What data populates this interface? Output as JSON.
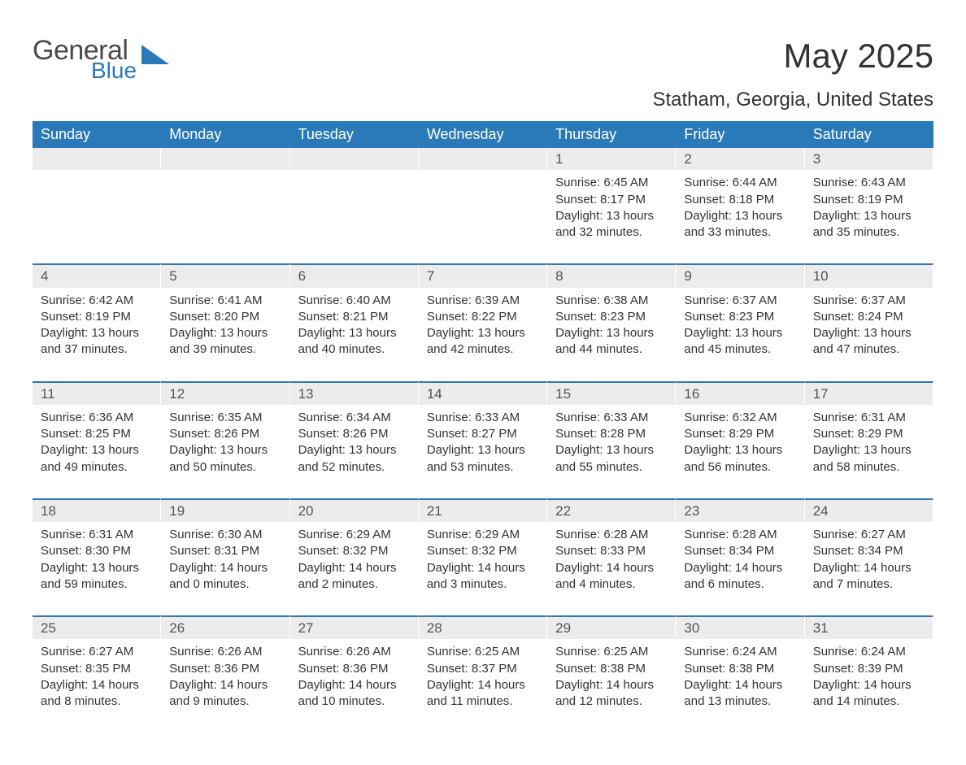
{
  "logo": {
    "text1": "General",
    "text2": "Blue",
    "accent_color": "#2a7ab9",
    "text_color": "#4a4a4a"
  },
  "title": "May 2025",
  "location": "Statham, Georgia, United States",
  "colors": {
    "header_bg": "#2a7ab9",
    "header_text": "#ffffff",
    "daynum_bg": "#ececec",
    "daynum_text": "#555555",
    "body_text": "#333333",
    "page_bg": "#ffffff",
    "row_rule": "#2a7ab9"
  },
  "fonts": {
    "title_size": 42,
    "location_size": 24,
    "header_size": 18,
    "daynum_size": 17,
    "body_size": 15
  },
  "day_headers": [
    "Sunday",
    "Monday",
    "Tuesday",
    "Wednesday",
    "Thursday",
    "Friday",
    "Saturday"
  ],
  "weeks": [
    [
      {
        "day": "",
        "sunrise": "",
        "sunset": "",
        "daylight": ""
      },
      {
        "day": "",
        "sunrise": "",
        "sunset": "",
        "daylight": ""
      },
      {
        "day": "",
        "sunrise": "",
        "sunset": "",
        "daylight": ""
      },
      {
        "day": "",
        "sunrise": "",
        "sunset": "",
        "daylight": ""
      },
      {
        "day": "1",
        "sunrise": "Sunrise: 6:45 AM",
        "sunset": "Sunset: 8:17 PM",
        "daylight": "Daylight: 13 hours and 32 minutes."
      },
      {
        "day": "2",
        "sunrise": "Sunrise: 6:44 AM",
        "sunset": "Sunset: 8:18 PM",
        "daylight": "Daylight: 13 hours and 33 minutes."
      },
      {
        "day": "3",
        "sunrise": "Sunrise: 6:43 AM",
        "sunset": "Sunset: 8:19 PM",
        "daylight": "Daylight: 13 hours and 35 minutes."
      }
    ],
    [
      {
        "day": "4",
        "sunrise": "Sunrise: 6:42 AM",
        "sunset": "Sunset: 8:19 PM",
        "daylight": "Daylight: 13 hours and 37 minutes."
      },
      {
        "day": "5",
        "sunrise": "Sunrise: 6:41 AM",
        "sunset": "Sunset: 8:20 PM",
        "daylight": "Daylight: 13 hours and 39 minutes."
      },
      {
        "day": "6",
        "sunrise": "Sunrise: 6:40 AM",
        "sunset": "Sunset: 8:21 PM",
        "daylight": "Daylight: 13 hours and 40 minutes."
      },
      {
        "day": "7",
        "sunrise": "Sunrise: 6:39 AM",
        "sunset": "Sunset: 8:22 PM",
        "daylight": "Daylight: 13 hours and 42 minutes."
      },
      {
        "day": "8",
        "sunrise": "Sunrise: 6:38 AM",
        "sunset": "Sunset: 8:23 PM",
        "daylight": "Daylight: 13 hours and 44 minutes."
      },
      {
        "day": "9",
        "sunrise": "Sunrise: 6:37 AM",
        "sunset": "Sunset: 8:23 PM",
        "daylight": "Daylight: 13 hours and 45 minutes."
      },
      {
        "day": "10",
        "sunrise": "Sunrise: 6:37 AM",
        "sunset": "Sunset: 8:24 PM",
        "daylight": "Daylight: 13 hours and 47 minutes."
      }
    ],
    [
      {
        "day": "11",
        "sunrise": "Sunrise: 6:36 AM",
        "sunset": "Sunset: 8:25 PM",
        "daylight": "Daylight: 13 hours and 49 minutes."
      },
      {
        "day": "12",
        "sunrise": "Sunrise: 6:35 AM",
        "sunset": "Sunset: 8:26 PM",
        "daylight": "Daylight: 13 hours and 50 minutes."
      },
      {
        "day": "13",
        "sunrise": "Sunrise: 6:34 AM",
        "sunset": "Sunset: 8:26 PM",
        "daylight": "Daylight: 13 hours and 52 minutes."
      },
      {
        "day": "14",
        "sunrise": "Sunrise: 6:33 AM",
        "sunset": "Sunset: 8:27 PM",
        "daylight": "Daylight: 13 hours and 53 minutes."
      },
      {
        "day": "15",
        "sunrise": "Sunrise: 6:33 AM",
        "sunset": "Sunset: 8:28 PM",
        "daylight": "Daylight: 13 hours and 55 minutes."
      },
      {
        "day": "16",
        "sunrise": "Sunrise: 6:32 AM",
        "sunset": "Sunset: 8:29 PM",
        "daylight": "Daylight: 13 hours and 56 minutes."
      },
      {
        "day": "17",
        "sunrise": "Sunrise: 6:31 AM",
        "sunset": "Sunset: 8:29 PM",
        "daylight": "Daylight: 13 hours and 58 minutes."
      }
    ],
    [
      {
        "day": "18",
        "sunrise": "Sunrise: 6:31 AM",
        "sunset": "Sunset: 8:30 PM",
        "daylight": "Daylight: 13 hours and 59 minutes."
      },
      {
        "day": "19",
        "sunrise": "Sunrise: 6:30 AM",
        "sunset": "Sunset: 8:31 PM",
        "daylight": "Daylight: 14 hours and 0 minutes."
      },
      {
        "day": "20",
        "sunrise": "Sunrise: 6:29 AM",
        "sunset": "Sunset: 8:32 PM",
        "daylight": "Daylight: 14 hours and 2 minutes."
      },
      {
        "day": "21",
        "sunrise": "Sunrise: 6:29 AM",
        "sunset": "Sunset: 8:32 PM",
        "daylight": "Daylight: 14 hours and 3 minutes."
      },
      {
        "day": "22",
        "sunrise": "Sunrise: 6:28 AM",
        "sunset": "Sunset: 8:33 PM",
        "daylight": "Daylight: 14 hours and 4 minutes."
      },
      {
        "day": "23",
        "sunrise": "Sunrise: 6:28 AM",
        "sunset": "Sunset: 8:34 PM",
        "daylight": "Daylight: 14 hours and 6 minutes."
      },
      {
        "day": "24",
        "sunrise": "Sunrise: 6:27 AM",
        "sunset": "Sunset: 8:34 PM",
        "daylight": "Daylight: 14 hours and 7 minutes."
      }
    ],
    [
      {
        "day": "25",
        "sunrise": "Sunrise: 6:27 AM",
        "sunset": "Sunset: 8:35 PM",
        "daylight": "Daylight: 14 hours and 8 minutes."
      },
      {
        "day": "26",
        "sunrise": "Sunrise: 6:26 AM",
        "sunset": "Sunset: 8:36 PM",
        "daylight": "Daylight: 14 hours and 9 minutes."
      },
      {
        "day": "27",
        "sunrise": "Sunrise: 6:26 AM",
        "sunset": "Sunset: 8:36 PM",
        "daylight": "Daylight: 14 hours and 10 minutes."
      },
      {
        "day": "28",
        "sunrise": "Sunrise: 6:25 AM",
        "sunset": "Sunset: 8:37 PM",
        "daylight": "Daylight: 14 hours and 11 minutes."
      },
      {
        "day": "29",
        "sunrise": "Sunrise: 6:25 AM",
        "sunset": "Sunset: 8:38 PM",
        "daylight": "Daylight: 14 hours and 12 minutes."
      },
      {
        "day": "30",
        "sunrise": "Sunrise: 6:24 AM",
        "sunset": "Sunset: 8:38 PM",
        "daylight": "Daylight: 14 hours and 13 minutes."
      },
      {
        "day": "31",
        "sunrise": "Sunrise: 6:24 AM",
        "sunset": "Sunset: 8:39 PM",
        "daylight": "Daylight: 14 hours and 14 minutes."
      }
    ]
  ]
}
